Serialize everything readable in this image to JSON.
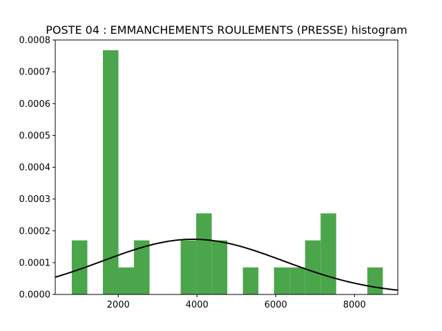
{
  "chart_data": {
    "type": "bar",
    "title": "POSTE 04  : EMMANCHEMENTS ROULEMENTS (PRESSE) histogram",
    "xlabel": "",
    "ylabel": "",
    "xlim": [
      400,
      9100
    ],
    "ylim": [
      0,
      0.0008
    ],
    "x_ticks": [
      2000,
      4000,
      6000,
      8000
    ],
    "y_ticks": [
      0.0,
      0.0001,
      0.0002,
      0.0003,
      0.0004,
      0.0005,
      0.0006,
      0.0007,
      0.0008
    ],
    "x_tick_labels": [
      "2000",
      "4000",
      "6000",
      "8000"
    ],
    "y_tick_labels": [
      "0.0000",
      "0.0001",
      "0.0002",
      "0.0003",
      "0.0004",
      "0.0005",
      "0.0006",
      "0.0007",
      "0.0008"
    ],
    "grid": false,
    "bins": [
      {
        "x0": 820,
        "x1": 1215,
        "density": 0.00017
      },
      {
        "x0": 1610,
        "x1": 2005,
        "density": 0.000768
      },
      {
        "x0": 2005,
        "x1": 2400,
        "density": 8.5e-05
      },
      {
        "x0": 2400,
        "x1": 2795,
        "density": 0.00017
      },
      {
        "x0": 3585,
        "x1": 3980,
        "density": 0.00017
      },
      {
        "x0": 3980,
        "x1": 4375,
        "density": 0.000255
      },
      {
        "x0": 4375,
        "x1": 4770,
        "density": 0.00017
      },
      {
        "x0": 5165,
        "x1": 5560,
        "density": 8.5e-05
      },
      {
        "x0": 5955,
        "x1": 6350,
        "density": 8.5e-05
      },
      {
        "x0": 6350,
        "x1": 6745,
        "density": 8.5e-05
      },
      {
        "x0": 6745,
        "x1": 7140,
        "density": 0.00017
      },
      {
        "x0": 7140,
        "x1": 7535,
        "density": 0.000255
      },
      {
        "x0": 8325,
        "x1": 8720,
        "density": 8.5e-05
      }
    ],
    "normal_curve": {
      "mean": 3900,
      "std": 2300,
      "x_range": [
        400,
        9100
      ]
    },
    "colors": {
      "bar": "#4ba64b",
      "curve": "#000000",
      "axis": "#000000"
    }
  }
}
